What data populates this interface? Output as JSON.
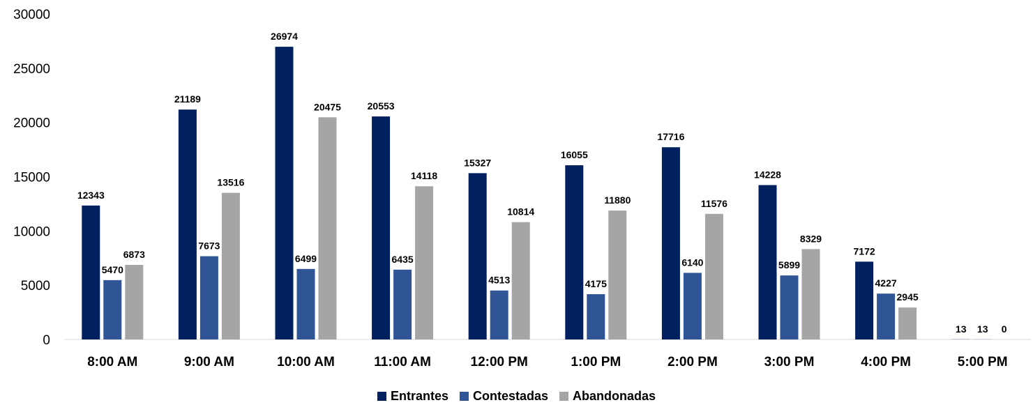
{
  "chart_data": {
    "type": "bar",
    "categories": [
      "8:00 AM",
      "9:00 AM",
      "10:00 AM",
      "11:00 AM",
      "12:00 PM",
      "1:00 PM",
      "2:00 PM",
      "3:00 PM",
      "4:00 PM",
      "5:00 PM"
    ],
    "series": [
      {
        "name": "Entrantes",
        "color": "#002060",
        "values": [
          12343,
          21189,
          26974,
          20553,
          15327,
          16055,
          17716,
          14228,
          7172,
          13
        ]
      },
      {
        "name": "Contestadas",
        "color": "#2F5597",
        "values": [
          5470,
          7673,
          6499,
          6435,
          4513,
          4175,
          6140,
          5899,
          4227,
          13
        ]
      },
      {
        "name": "Abandonadas",
        "color": "#A5A5A5",
        "values": [
          6873,
          13516,
          20475,
          14118,
          10814,
          11880,
          11576,
          8329,
          2945,
          0
        ]
      }
    ],
    "yticks": [
      "0",
      "5000",
      "10000",
      "15000",
      "20000",
      "25000",
      "30000"
    ],
    "ylim": [
      0,
      30000
    ],
    "title": "",
    "xlabel": "",
    "ylabel": "",
    "grid": false,
    "legend_position": "bottom"
  }
}
